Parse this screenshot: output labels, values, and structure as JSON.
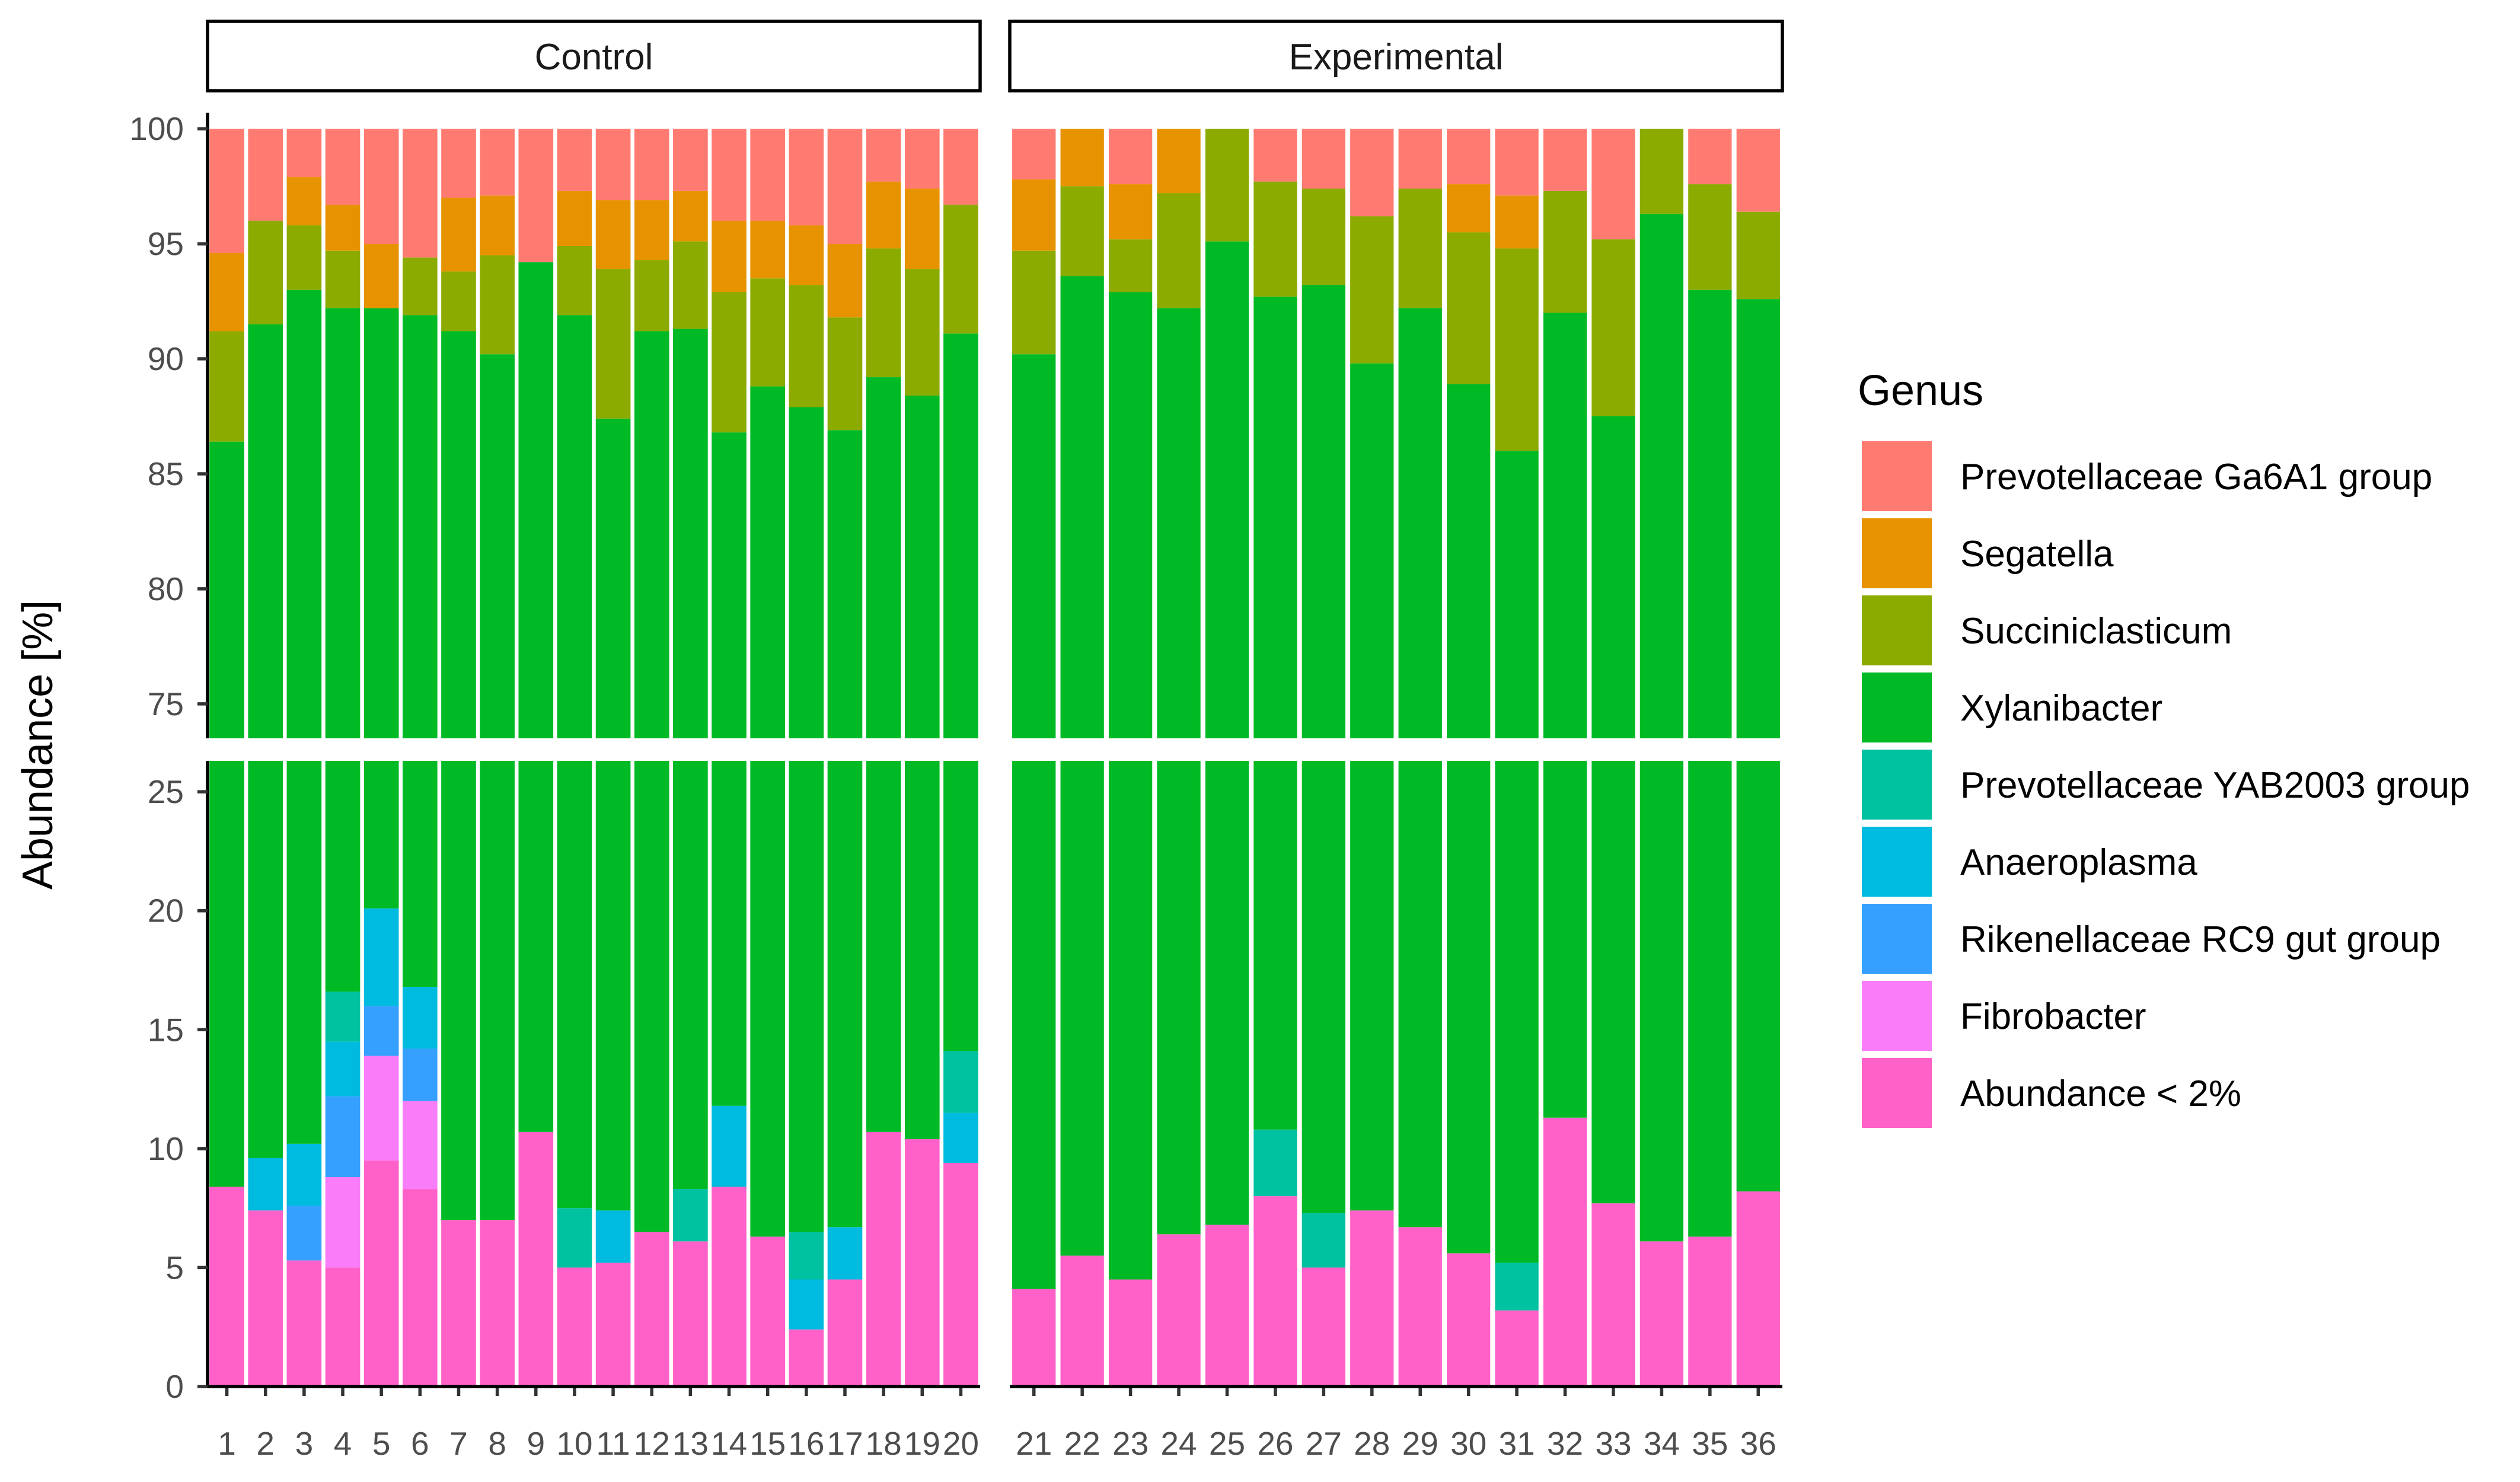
{
  "chart_data": {
    "type": "bar",
    "stacked": true,
    "broken_y_axis": true,
    "ylabel": "Abundance [%]",
    "legend_title": "Genus",
    "legend_position": "right",
    "upper_range": [
      73.5,
      100.7
    ],
    "lower_range": [
      0,
      26.3
    ],
    "upper_ticks": [
      75,
      80,
      85,
      90,
      95,
      100
    ],
    "lower_ticks": [
      0,
      5,
      10,
      15,
      20,
      25
    ],
    "genera": [
      "Prevotellaceae Ga6A1 group",
      "Segatella",
      "Succiniclasticum",
      "Xylanibacter",
      "Prevotellaceae YAB2003 group",
      "Anaeroplasma",
      "Rikenellaceae RC9 gut group",
      "Fibrobacter",
      "Abundance < 2%"
    ],
    "colors": {
      "Prevotellaceae Ga6A1 group": "#FF7B72",
      "Segatella": "#E79300",
      "Succiniclasticum": "#8BAB00",
      "Xylanibacter": "#00BA25",
      "Prevotellaceae YAB2003 group": "#00C1A0",
      "Anaeroplasma": "#00BBE0",
      "Rikenellaceae RC9 gut group": "#35A0FF",
      "Fibrobacter": "#F97DF9",
      "Abundance < 2%": "#FF61C9"
    },
    "panels": [
      {
        "label": "Control",
        "samples": [
          {
            "id": "1",
            "values": [
              5.4,
              3.4,
              4.8,
              78.0,
              0,
              0,
              0,
              0,
              8.4
            ]
          },
          {
            "id": "2",
            "values": [
              4.0,
              0,
              4.5,
              81.9,
              0,
              2.2,
              0,
              0,
              7.4
            ]
          },
          {
            "id": "3",
            "values": [
              2.1,
              2.1,
              2.8,
              82.8,
              0,
              2.6,
              2.3,
              0,
              5.3
            ]
          },
          {
            "id": "4",
            "values": [
              3.3,
              2.0,
              2.5,
              75.6,
              2.1,
              2.3,
              3.4,
              3.8,
              5.0
            ]
          },
          {
            "id": "5",
            "values": [
              5.0,
              2.8,
              0,
              72.1,
              0,
              4.1,
              2.1,
              4.4,
              9.5
            ]
          },
          {
            "id": "6",
            "values": [
              5.6,
              0,
              2.5,
              75.1,
              0,
              2.6,
              2.2,
              3.7,
              8.3
            ]
          },
          {
            "id": "7",
            "values": [
              3.0,
              3.2,
              2.6,
              84.2,
              0,
              0,
              0,
              0,
              7.0
            ]
          },
          {
            "id": "8",
            "values": [
              2.9,
              2.6,
              4.3,
              83.2,
              0,
              0,
              0,
              0,
              7.0
            ]
          },
          {
            "id": "9",
            "values": [
              5.8,
              0,
              0,
              83.5,
              0,
              0,
              0,
              0,
              10.7
            ]
          },
          {
            "id": "10",
            "values": [
              2.7,
              2.4,
              3.0,
              84.4,
              2.5,
              0,
              0,
              0,
              5.0
            ]
          },
          {
            "id": "11",
            "values": [
              3.1,
              3.0,
              6.5,
              80.0,
              0,
              2.2,
              0,
              0,
              5.2
            ]
          },
          {
            "id": "12",
            "values": [
              3.1,
              2.6,
              3.1,
              84.7,
              0,
              0,
              0,
              0,
              6.5
            ]
          },
          {
            "id": "13",
            "values": [
              2.7,
              2.2,
              3.8,
              83.0,
              2.2,
              0,
              0,
              0,
              6.1
            ]
          },
          {
            "id": "14",
            "values": [
              4.0,
              3.1,
              6.1,
              75.0,
              0,
              3.4,
              0,
              0,
              8.4
            ]
          },
          {
            "id": "15",
            "values": [
              4.0,
              2.5,
              4.7,
              82.5,
              0,
              0,
              0,
              0,
              6.3
            ]
          },
          {
            "id": "16",
            "values": [
              4.2,
              2.6,
              5.3,
              81.4,
              2.0,
              2.1,
              0,
              0,
              2.4
            ]
          },
          {
            "id": "17",
            "values": [
              5.0,
              3.2,
              4.9,
              80.2,
              0,
              2.2,
              0,
              0,
              4.5
            ]
          },
          {
            "id": "18",
            "values": [
              2.3,
              2.9,
              5.6,
              78.5,
              0,
              0,
              0,
              0,
              10.7
            ]
          },
          {
            "id": "19",
            "values": [
              2.6,
              3.5,
              5.5,
              78.0,
              0,
              0,
              0,
              0,
              10.4
            ]
          },
          {
            "id": "20",
            "values": [
              3.3,
              0,
              5.6,
              77.0,
              2.6,
              2.1,
              0,
              0,
              9.4
            ]
          }
        ]
      },
      {
        "label": "Experimental",
        "samples": [
          {
            "id": "21",
            "values": [
              2.2,
              3.1,
              4.5,
              86.1,
              0,
              0,
              0,
              0,
              4.1
            ]
          },
          {
            "id": "22",
            "values": [
              0,
              2.5,
              3.9,
              88.1,
              0,
              0,
              0,
              0,
              5.5
            ]
          },
          {
            "id": "23",
            "values": [
              2.4,
              2.4,
              2.3,
              88.4,
              0,
              0,
              0,
              0,
              4.5
            ]
          },
          {
            "id": "24",
            "values": [
              0,
              2.8,
              5.0,
              85.8,
              0,
              0,
              0,
              0,
              6.4
            ]
          },
          {
            "id": "25",
            "values": [
              0,
              0,
              4.9,
              88.3,
              0,
              0,
              0,
              0,
              6.8
            ]
          },
          {
            "id": "26",
            "values": [
              2.3,
              0,
              5.0,
              81.9,
              2.8,
              0,
              0,
              0,
              8.0
            ]
          },
          {
            "id": "27",
            "values": [
              2.6,
              0,
              4.2,
              85.9,
              2.3,
              0,
              0,
              0,
              5.0
            ]
          },
          {
            "id": "28",
            "values": [
              3.8,
              0,
              6.4,
              82.4,
              0,
              0,
              0,
              0,
              7.4
            ]
          },
          {
            "id": "29",
            "values": [
              2.6,
              0,
              5.2,
              85.5,
              0,
              0,
              0,
              0,
              6.7
            ]
          },
          {
            "id": "30",
            "values": [
              2.4,
              2.1,
              6.6,
              83.3,
              0,
              0,
              0,
              0,
              5.6
            ]
          },
          {
            "id": "31",
            "values": [
              2.9,
              2.3,
              8.8,
              80.8,
              2.0,
              0,
              0,
              0,
              3.2
            ]
          },
          {
            "id": "32",
            "values": [
              2.7,
              0,
              5.3,
              80.7,
              0,
              0,
              0,
              0,
              11.3
            ]
          },
          {
            "id": "33",
            "values": [
              4.8,
              0,
              7.7,
              79.8,
              0,
              0,
              0,
              0,
              7.7
            ]
          },
          {
            "id": "34",
            "values": [
              0,
              0,
              3.7,
              90.2,
              0,
              0,
              0,
              0,
              6.1
            ]
          },
          {
            "id": "35",
            "values": [
              2.4,
              0,
              4.6,
              86.7,
              0,
              0,
              0,
              0,
              6.3
            ]
          },
          {
            "id": "36",
            "values": [
              3.6,
              0,
              3.8,
              84.4,
              0,
              0,
              0,
              0,
              8.2
            ]
          }
        ]
      }
    ]
  }
}
